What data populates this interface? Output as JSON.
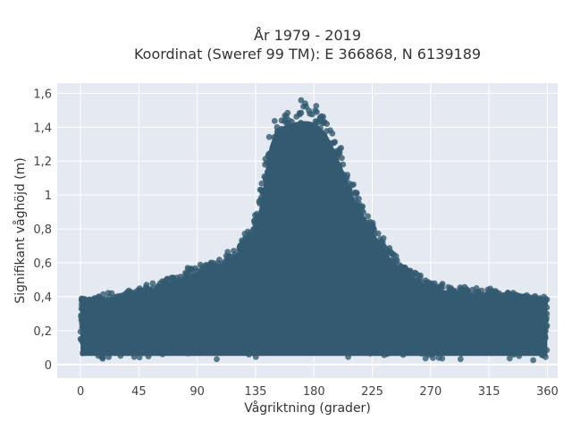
{
  "chart_data": {
    "type": "scatter",
    "title": "År 1979 - 2019",
    "subtitle": "Koordinat (Sweref 99 TM): E 366868, N 6139189",
    "xlabel": "Vågriktning (grader)",
    "ylabel": "Signifikant våghöjd (m)",
    "xlim": [
      -18,
      368
    ],
    "ylim": [
      -0.08,
      1.66
    ],
    "xticks": [
      0,
      45,
      90,
      135,
      180,
      225,
      270,
      315,
      360
    ],
    "xtick_labels": [
      "0",
      "45",
      "90",
      "135",
      "180",
      "225",
      "270",
      "315",
      "360"
    ],
    "yticks": [
      0,
      0.2,
      0.4,
      0.6,
      0.8,
      1,
      1.2,
      1.4,
      1.6
    ],
    "ytick_labels": [
      "0",
      "0,2",
      "0,4",
      "0,6",
      "0,8",
      "1",
      "1,2",
      "1,4",
      "1,6"
    ],
    "grid": true,
    "marker_color": "#335a70",
    "plot_background": "#e5e9f2",
    "envelope": {
      "x": [
        0,
        10,
        20,
        30,
        45,
        60,
        75,
        90,
        100,
        110,
        120,
        130,
        135,
        140,
        145,
        150,
        155,
        160,
        165,
        170,
        175,
        180,
        185,
        190,
        195,
        200,
        205,
        210,
        215,
        220,
        225,
        230,
        240,
        250,
        260,
        270,
        280,
        290,
        300,
        315,
        330,
        345,
        360
      ],
      "y": [
        0.4,
        0.42,
        0.43,
        0.44,
        0.46,
        0.5,
        0.55,
        0.6,
        0.62,
        0.66,
        0.72,
        0.82,
        0.9,
        1.1,
        1.4,
        1.52,
        1.55,
        1.57,
        1.58,
        1.59,
        1.59,
        1.58,
        1.55,
        1.5,
        1.42,
        1.32,
        1.22,
        1.1,
        1.02,
        0.95,
        0.88,
        0.8,
        0.68,
        0.6,
        0.55,
        0.5,
        0.48,
        0.47,
        0.46,
        0.45,
        0.44,
        0.43,
        0.4
      ]
    }
  }
}
